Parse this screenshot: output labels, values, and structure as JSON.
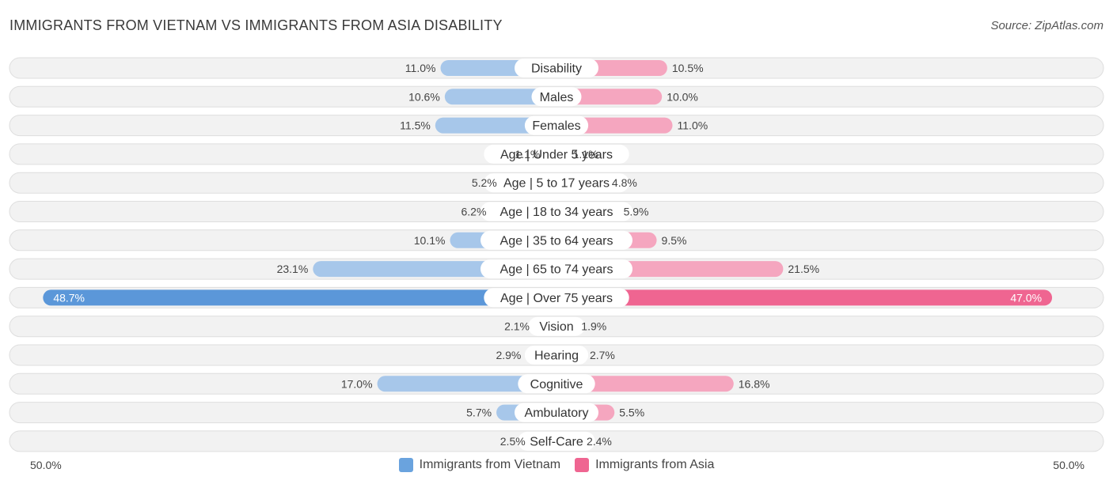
{
  "title": "IMMIGRANTS FROM VIETNAM VS IMMIGRANTS FROM ASIA DISABILITY",
  "source": "Source: ZipAtlas.com",
  "colors": {
    "left": "#a7c7ea",
    "left_strong": "#5b97d9",
    "right": "#f5a6bf",
    "right_strong": "#ef6591",
    "row_bg": "#f2f2f2",
    "row_border": "#dedede"
  },
  "axis": {
    "left_label": "50.0%",
    "right_label": "50.0%"
  },
  "legend": [
    {
      "label": "Immigrants from Vietnam",
      "color": "#6aa3de"
    },
    {
      "label": "Immigrants from Asia",
      "color": "#ef6591"
    }
  ],
  "chart_data": {
    "type": "bar",
    "orientation": "horizontal-diverging",
    "xlim": [
      -50,
      50
    ],
    "categories": [
      "Disability",
      "Males",
      "Females",
      "Age | Under 5 years",
      "Age | 5 to 17 years",
      "Age | 18 to 34 years",
      "Age | 35 to 64 years",
      "Age | 65 to 74 years",
      "Age | Over 75 years",
      "Vision",
      "Hearing",
      "Cognitive",
      "Ambulatory",
      "Self-Care"
    ],
    "series": [
      {
        "name": "Immigrants from Vietnam",
        "values": [
          11.0,
          10.6,
          11.5,
          1.1,
          5.2,
          6.2,
          10.1,
          23.1,
          48.7,
          2.1,
          2.9,
          17.0,
          5.7,
          2.5
        ],
        "labels": [
          "11.0%",
          "10.6%",
          "11.5%",
          "1.1%",
          "5.2%",
          "6.2%",
          "10.1%",
          "23.1%",
          "48.7%",
          "2.1%",
          "2.9%",
          "17.0%",
          "5.7%",
          "2.5%"
        ]
      },
      {
        "name": "Immigrants from Asia",
        "values": [
          10.5,
          10.0,
          11.0,
          1.1,
          4.8,
          5.9,
          9.5,
          21.5,
          47.0,
          1.9,
          2.7,
          16.8,
          5.5,
          2.4
        ],
        "labels": [
          "10.5%",
          "10.0%",
          "11.0%",
          "1.1%",
          "4.8%",
          "5.9%",
          "9.5%",
          "21.5%",
          "47.0%",
          "1.9%",
          "2.7%",
          "16.8%",
          "5.5%",
          "2.4%"
        ]
      }
    ]
  }
}
